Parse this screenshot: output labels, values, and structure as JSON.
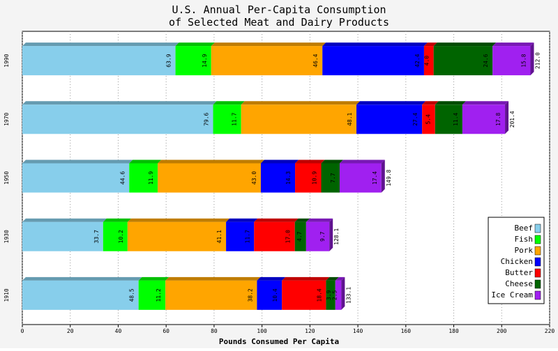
{
  "chart_data": {
    "type": "stacked-bar-horizontal",
    "title": [
      "U.S. Annual Per-Capita Consumption",
      "of Selected Meat and Dairy Products"
    ],
    "x_label": "Pounds Consumed Per Capita",
    "categories": [
      "1990",
      "1970",
      "1950",
      "1930",
      "1910"
    ],
    "series": [
      {
        "name": "Beef",
        "color": "#87ceeb",
        "values": [
          63.9,
          79.6,
          44.6,
          33.7,
          48.5
        ],
        "value_labels": [
          "63.9",
          "79.6",
          "44.6",
          "33.7",
          "48.5"
        ]
      },
      {
        "name": "Fish",
        "color": "#00ff00",
        "values": [
          14.9,
          11.7,
          11.9,
          10.2,
          11.2
        ],
        "value_labels": [
          "14.9",
          "11.7",
          "11.9",
          "10.2",
          "11.2"
        ]
      },
      {
        "name": "Pork",
        "color": "#ffa500",
        "values": [
          46.4,
          48.1,
          43.0,
          41.1,
          38.2
        ],
        "value_labels": [
          "46.4",
          "48.1",
          "43.0",
          "41.1",
          "38.2"
        ]
      },
      {
        "name": "Chicken",
        "color": "#0000ff",
        "values": [
          42.4,
          27.4,
          14.3,
          11.7,
          10.4
        ],
        "value_labels": [
          "42.4",
          "27.4",
          "14.3",
          "11.7",
          "10.4"
        ]
      },
      {
        "name": "Butter",
        "color": "#ff0000",
        "values": [
          4.0,
          5.4,
          10.9,
          17.0,
          18.4
        ],
        "value_labels": [
          "4.0",
          "5.4",
          "10.9",
          "17.0",
          "18.4"
        ]
      },
      {
        "name": "Cheese",
        "color": "#006400",
        "values": [
          24.6,
          11.4,
          7.7,
          4.7,
          3.9
        ],
        "value_labels": [
          "24.6",
          "11.4",
          "7.7",
          "4.7",
          "3.9"
        ]
      },
      {
        "name": "Ice Cream",
        "color": "#a020f0",
        "values": [
          15.8,
          17.8,
          17.4,
          9.7,
          2.5
        ],
        "value_labels": [
          "15.8",
          "17.8",
          "17.4",
          "9.7",
          "2.5"
        ]
      }
    ],
    "totals": [
      {
        "value": 212.0,
        "label": "212.0"
      },
      {
        "value": 201.4,
        "label": "201.4"
      },
      {
        "value": 149.8,
        "label": "149.8"
      },
      {
        "value": 128.1,
        "label": "128.1"
      },
      {
        "value": 133.1,
        "label": "133.1"
      }
    ],
    "xlim": [
      0,
      220
    ],
    "xticks": [
      0,
      20,
      40,
      60,
      80,
      100,
      120,
      140,
      160,
      180,
      200,
      220
    ],
    "grid": true,
    "legend": "lower-right"
  }
}
